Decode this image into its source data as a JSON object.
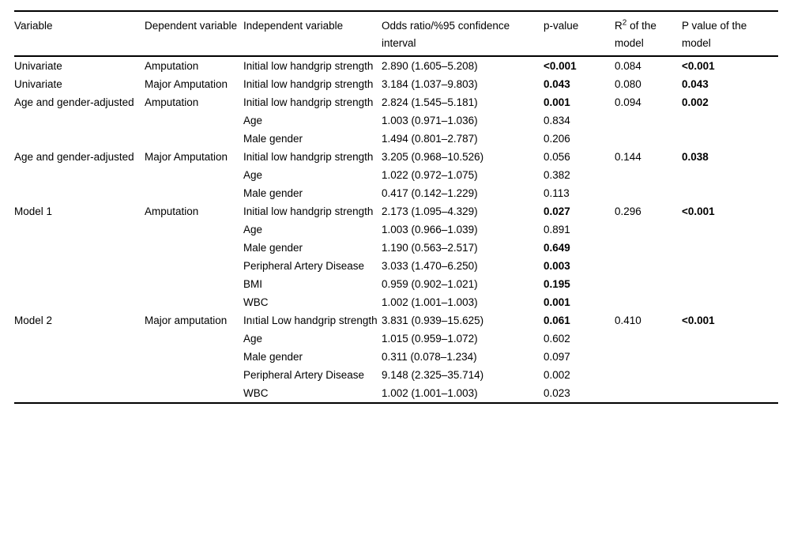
{
  "table": {
    "columns": [
      {
        "parts": [
          {
            "t": "Variable"
          }
        ]
      },
      {
        "parts": [
          {
            "t": "Dependent variable"
          }
        ]
      },
      {
        "parts": [
          {
            "t": "Independent variable"
          }
        ]
      },
      {
        "parts": [
          {
            "t": "Odds ratio/%95 confidence interval"
          }
        ]
      },
      {
        "parts": [
          {
            "t": "p-value"
          }
        ]
      },
      {
        "parts": [
          {
            "t": "R"
          },
          {
            "t": "2",
            "sup": true
          },
          {
            "t": " of the model"
          }
        ]
      },
      {
        "parts": [
          {
            "t": "P value of the model"
          }
        ]
      }
    ],
    "rows": [
      {
        "v": "Univariate",
        "d": "Amputation",
        "iv": "Initial low handgrip strength",
        "or": "2.890 (1.605–5.208)",
        "p": "<0.001",
        "pb": true,
        "r2": "0.084",
        "pm": "<0.001",
        "pmb": true
      },
      {
        "v": "Univariate",
        "d": "Major Amputation",
        "iv": "Initial low handgrip strength",
        "or": "3.184 (1.037–9.803)",
        "p": "0.043",
        "pb": true,
        "r2": "0.080",
        "pm": "0.043",
        "pmb": true
      },
      {
        "v": "Age and gender-adjusted",
        "d": "Amputation",
        "iv": "Initial low handgrip strength",
        "or": "2.824 (1.545–5.181)",
        "p": "0.001",
        "pb": true,
        "r2": "0.094",
        "pm": "0.002",
        "pmb": true
      },
      {
        "v": "",
        "d": "",
        "iv": "Age",
        "or": "1.003 (0.971–1.036)",
        "p": "0.834",
        "pb": false,
        "r2": "",
        "pm": "",
        "pmb": false
      },
      {
        "v": "",
        "d": "",
        "iv": "Male gender",
        "or": "1.494 (0.801–2.787)",
        "p": "0.206",
        "pb": false,
        "r2": "",
        "pm": "",
        "pmb": false
      },
      {
        "v": "Age and gender-adjusted",
        "d": "Major Amputation",
        "iv": "Initial low handgrip strength",
        "or": "3.205 (0.968–10.526)",
        "p": "0.056",
        "pb": false,
        "r2": "0.144",
        "pm": "0.038",
        "pmb": true
      },
      {
        "v": "",
        "d": "",
        "iv": "Age",
        "or": "1.022 (0.972–1.075)",
        "p": "0.382",
        "pb": false,
        "r2": "",
        "pm": "",
        "pmb": false
      },
      {
        "v": "",
        "d": "",
        "iv": "Male gender",
        "or": "0.417 (0.142–1.229)",
        "p": "0.113",
        "pb": false,
        "r2": "",
        "pm": "",
        "pmb": false
      },
      {
        "v": "Model 1",
        "d": "Amputation",
        "iv": "Initial low handgrip strength",
        "or": "2.173 (1.095–4.329)",
        "p": "0.027",
        "pb": true,
        "r2": "0.296",
        "pm": "<0.001",
        "pmb": true
      },
      {
        "v": "",
        "d": "",
        "iv": "Age",
        "or": "1.003 (0.966–1.039)",
        "p": "0.891",
        "pb": false,
        "r2": "",
        "pm": "",
        "pmb": false
      },
      {
        "v": "",
        "d": "",
        "iv": "Male gender",
        "or": "1.190 (0.563–2.517)",
        "p": "0.649",
        "pb": true,
        "r2": "",
        "pm": "",
        "pmb": false
      },
      {
        "v": "",
        "d": "",
        "iv": "Peripheral Artery Disease",
        "or": "3.033 (1.470–6.250)",
        "p": "0.003",
        "pb": true,
        "r2": "",
        "pm": "",
        "pmb": false
      },
      {
        "v": "",
        "d": "",
        "iv": "BMI",
        "or": "0.959 (0.902–1.021)",
        "p": "0.195",
        "pb": true,
        "r2": "",
        "pm": "",
        "pmb": false
      },
      {
        "v": "",
        "d": "",
        "iv": "WBC",
        "or": "1.002 (1.001–1.003)",
        "p": "0.001",
        "pb": true,
        "r2": "",
        "pm": "",
        "pmb": false
      },
      {
        "v": "Model 2",
        "d": "Major amputation",
        "iv": "Inıtial Low handgrip strength",
        "or": "3.831 (0.939–15.625)",
        "p": "0.061",
        "pb": true,
        "r2": "0.410",
        "pm": "<0.001",
        "pmb": true
      },
      {
        "v": "",
        "d": "",
        "iv": "Age",
        "or": "1.015 (0.959–1.072)",
        "p": "0.602",
        "pb": false,
        "r2": "",
        "pm": "",
        "pmb": false
      },
      {
        "v": "",
        "d": "",
        "iv": "Male gender",
        "or": "0.311 (0.078–1.234)",
        "p": "0.097",
        "pb": false,
        "r2": "",
        "pm": "",
        "pmb": false
      },
      {
        "v": "",
        "d": "",
        "iv": "Peripheral Artery Disease",
        "or": "9.148 (2.325–35.714)",
        "p": "0.002",
        "pb": false,
        "r2": "",
        "pm": "",
        "pmb": false
      },
      {
        "v": "",
        "d": "",
        "iv": "WBC",
        "or": "1.002 (1.001–1.003)",
        "p": "0.023",
        "pb": false,
        "r2": "",
        "pm": "",
        "pmb": false
      }
    ],
    "colors": {
      "text": "#000000",
      "background": "#ffffff",
      "rule": "#000000"
    }
  }
}
